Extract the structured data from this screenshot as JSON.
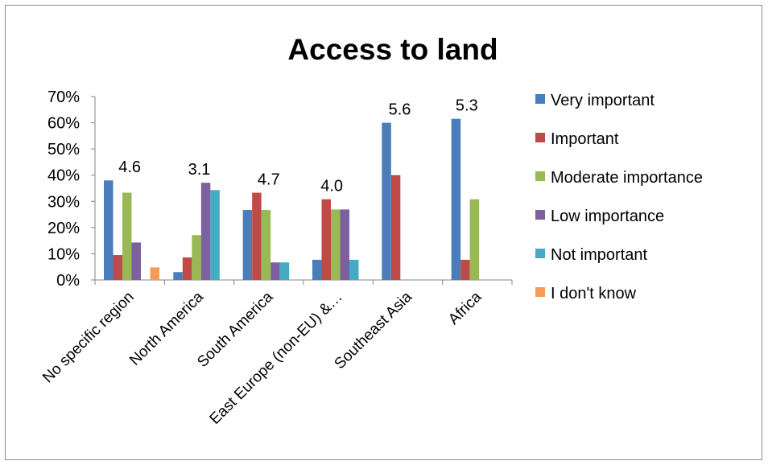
{
  "chart_data": {
    "type": "bar",
    "title": "Access to land",
    "xlabel": "",
    "ylabel": "",
    "ylim": [
      0,
      0.7
    ],
    "yticks": [
      "0%",
      "10%",
      "20%",
      "30%",
      "40%",
      "50%",
      "60%",
      "70%"
    ],
    "grid": false,
    "legend_position": "right",
    "categories": [
      "No specific region",
      "North America",
      "South America",
      "East Europe (non-EU) &…",
      "Southeast Asia",
      "Africa"
    ],
    "series": [
      {
        "name": "Very important",
        "color": "#4a7ebb",
        "values": [
          0.38,
          0.03,
          0.267,
          0.077,
          0.6,
          0.615
        ]
      },
      {
        "name": "Important",
        "color": "#be4b48",
        "values": [
          0.095,
          0.086,
          0.333,
          0.308,
          0.4,
          0.077
        ]
      },
      {
        "name": "Moderate importance",
        "color": "#98b954",
        "values": [
          0.333,
          0.171,
          0.267,
          0.269,
          0,
          0.308
        ]
      },
      {
        "name": "Low importance",
        "color": "#7d60a0",
        "values": [
          0.143,
          0.371,
          0.067,
          0.269,
          0,
          0
        ]
      },
      {
        "name": "Not important",
        "color": "#46aac5",
        "values": [
          0,
          0.343,
          0.067,
          0.077,
          0,
          0
        ]
      },
      {
        "name": "I don't know",
        "color": "#f59d56",
        "values": [
          0.048,
          0,
          0,
          0,
          0,
          0
        ]
      }
    ],
    "annotations": [
      "4.6",
      "3.1",
      "4.7",
      "4.0",
      "5.6",
      "5.3"
    ]
  }
}
